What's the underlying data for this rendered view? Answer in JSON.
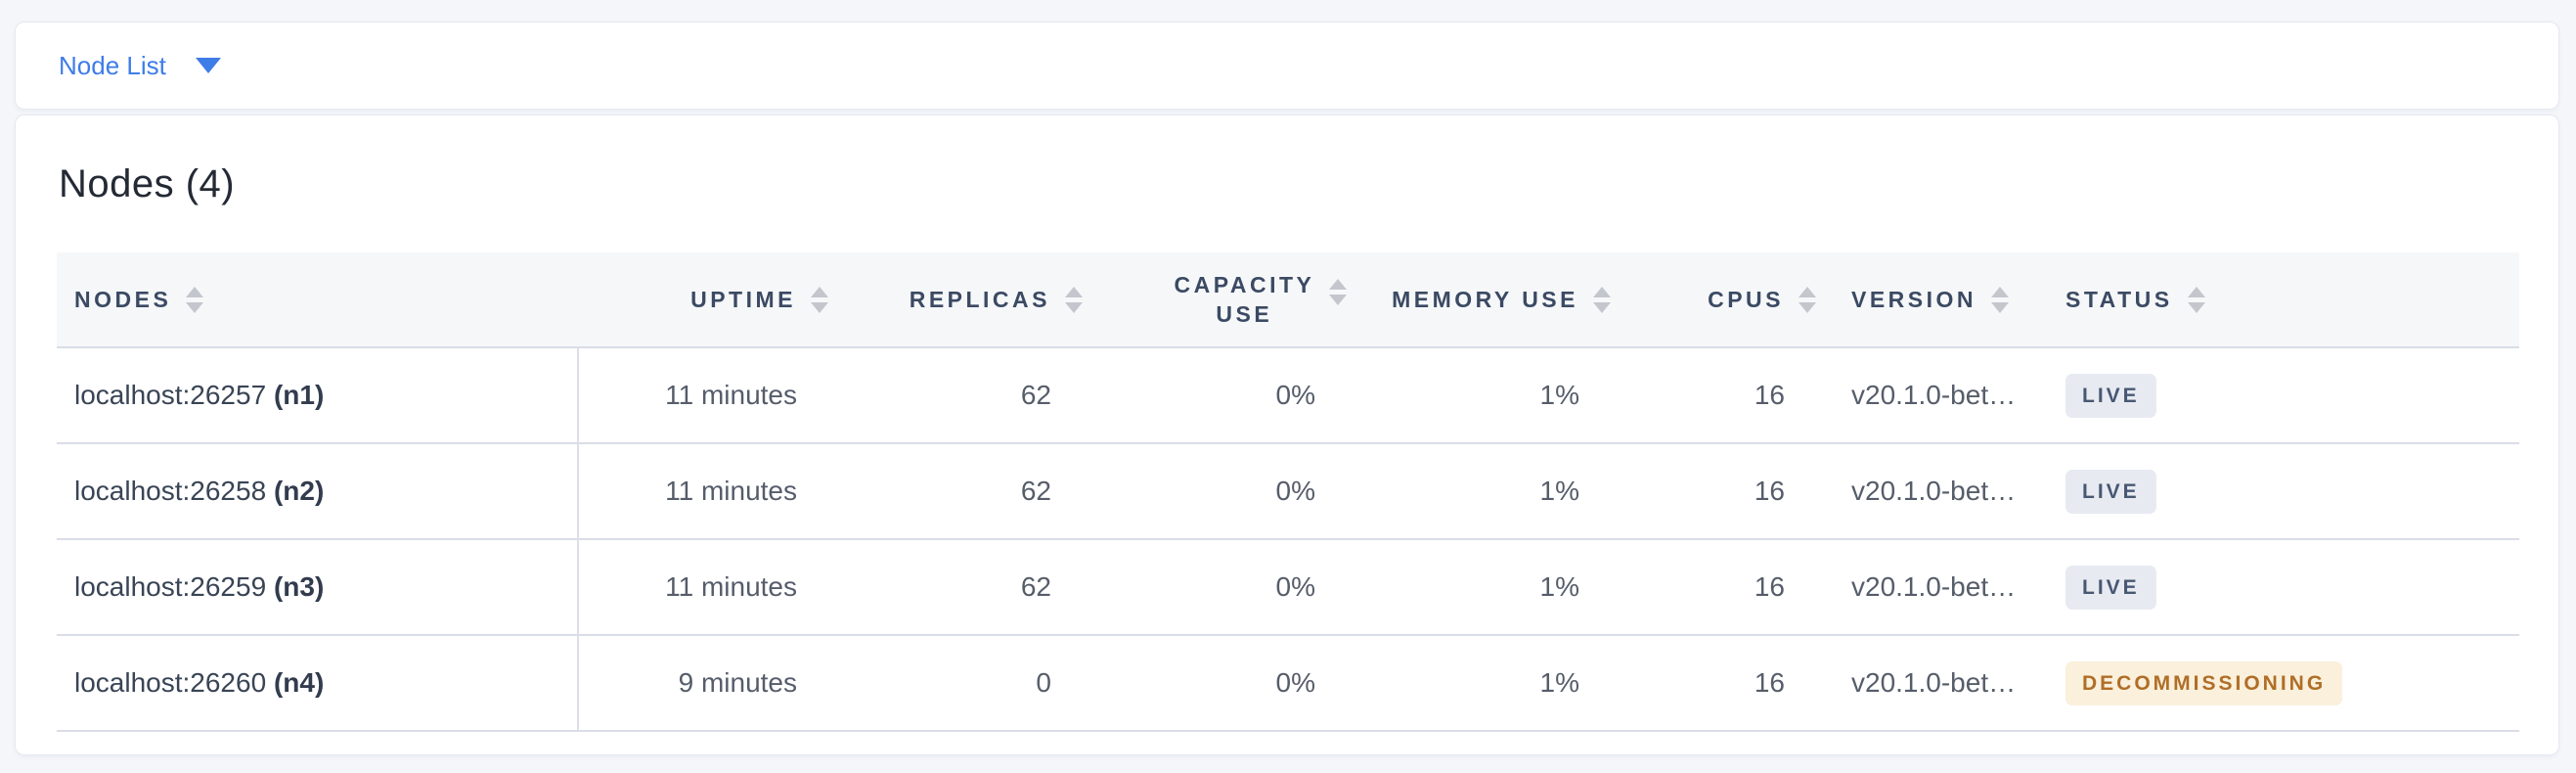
{
  "topbar": {
    "selected_view": "Node List"
  },
  "main": {
    "title": "Nodes (4)"
  },
  "table": {
    "headers": [
      {
        "id": "nodes",
        "label": "NODES",
        "sortable": true
      },
      {
        "id": "uptime",
        "label": "UPTIME",
        "sortable": true
      },
      {
        "id": "replicas",
        "label": "REPLICAS",
        "sortable": true
      },
      {
        "id": "capacity_use",
        "label": "CAPACITY USE",
        "sortable": true
      },
      {
        "id": "memory_use",
        "label": "MEMORY USE",
        "sortable": true
      },
      {
        "id": "cpus",
        "label": "CPUS",
        "sortable": true
      },
      {
        "id": "version",
        "label": "VERSION",
        "sortable": true
      },
      {
        "id": "status",
        "label": "STATUS",
        "sortable": true
      }
    ],
    "rows": [
      {
        "address": "localhost:26257",
        "id": "(n1)",
        "uptime": "11 minutes",
        "replicas": "62",
        "capacity_use": "0%",
        "memory_use": "1%",
        "cpus": "16",
        "version": "v20.1.0-bet…",
        "status": "LIVE",
        "status_kind": "live"
      },
      {
        "address": "localhost:26258",
        "id": "(n2)",
        "uptime": "11 minutes",
        "replicas": "62",
        "capacity_use": "0%",
        "memory_use": "1%",
        "cpus": "16",
        "version": "v20.1.0-bet…",
        "status": "LIVE",
        "status_kind": "live"
      },
      {
        "address": "localhost:26259",
        "id": "(n3)",
        "uptime": "11 minutes",
        "replicas": "62",
        "capacity_use": "0%",
        "memory_use": "1%",
        "cpus": "16",
        "version": "v20.1.0-bet…",
        "status": "LIVE",
        "status_kind": "live"
      },
      {
        "address": "localhost:26260",
        "id": "(n4)",
        "uptime": "9 minutes",
        "replicas": "0",
        "capacity_use": "0%",
        "memory_use": "1%",
        "cpus": "16",
        "version": "v20.1.0-bet…",
        "status": "DECOMMISSIONING",
        "status_kind": "decommissioning"
      }
    ]
  },
  "colors": {
    "accent_blue": "#3e7ce8",
    "page_background": "#f4f6fa",
    "card_background": "#ffffff",
    "header_row_background": "#f6f7f9",
    "header_text": "#3b4a63",
    "body_text": "#565d6a",
    "node_text": "#394455",
    "row_separator": "#d9dde6",
    "sort_arrow": "#c3c6cc",
    "badge_live_bg": "#e7eaf1",
    "badge_live_text": "#475872",
    "badge_decommissioning_bg": "#faf0dc",
    "badge_decommissioning_text": "#b06e26"
  }
}
